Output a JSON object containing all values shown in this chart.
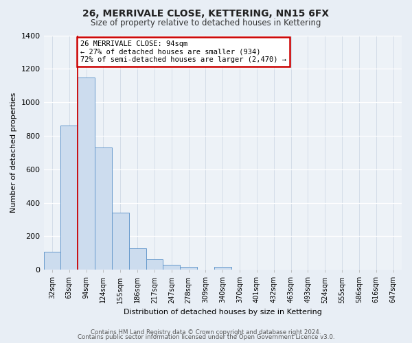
{
  "title": "26, MERRIVALE CLOSE, KETTERING, NN15 6FX",
  "subtitle": "Size of property relative to detached houses in Kettering",
  "xlabel": "Distribution of detached houses by size in Kettering",
  "ylabel": "Number of detached properties",
  "bin_labels": [
    "32sqm",
    "63sqm",
    "94sqm",
    "124sqm",
    "155sqm",
    "186sqm",
    "217sqm",
    "247sqm",
    "278sqm",
    "309sqm",
    "340sqm",
    "370sqm",
    "401sqm",
    "432sqm",
    "463sqm",
    "493sqm",
    "524sqm",
    "555sqm",
    "586sqm",
    "616sqm",
    "647sqm"
  ],
  "bar_heights": [
    107,
    862,
    1148,
    730,
    342,
    128,
    62,
    30,
    18,
    0,
    15,
    0,
    0,
    0,
    0,
    0,
    0,
    0,
    0,
    0,
    0
  ],
  "bar_color": "#ccdcee",
  "bar_edge_color": "#6699cc",
  "highlight_color": "#cc0000",
  "annotation_title": "26 MERRIVALE CLOSE: 94sqm",
  "annotation_line1": "← 27% of detached houses are smaller (934)",
  "annotation_line2": "72% of semi-detached houses are larger (2,470) →",
  "annotation_box_edge": "#cc0000",
  "ylim": [
    0,
    1400
  ],
  "yticks": [
    0,
    200,
    400,
    600,
    800,
    1000,
    1200,
    1400
  ],
  "footnote1": "Contains HM Land Registry data © Crown copyright and database right 2024.",
  "footnote2": "Contains public sector information licensed under the Open Government Licence v3.0.",
  "bg_color": "#e8eef5",
  "plot_bg_color": "#edf2f7",
  "grid_color": "#d0dae6"
}
